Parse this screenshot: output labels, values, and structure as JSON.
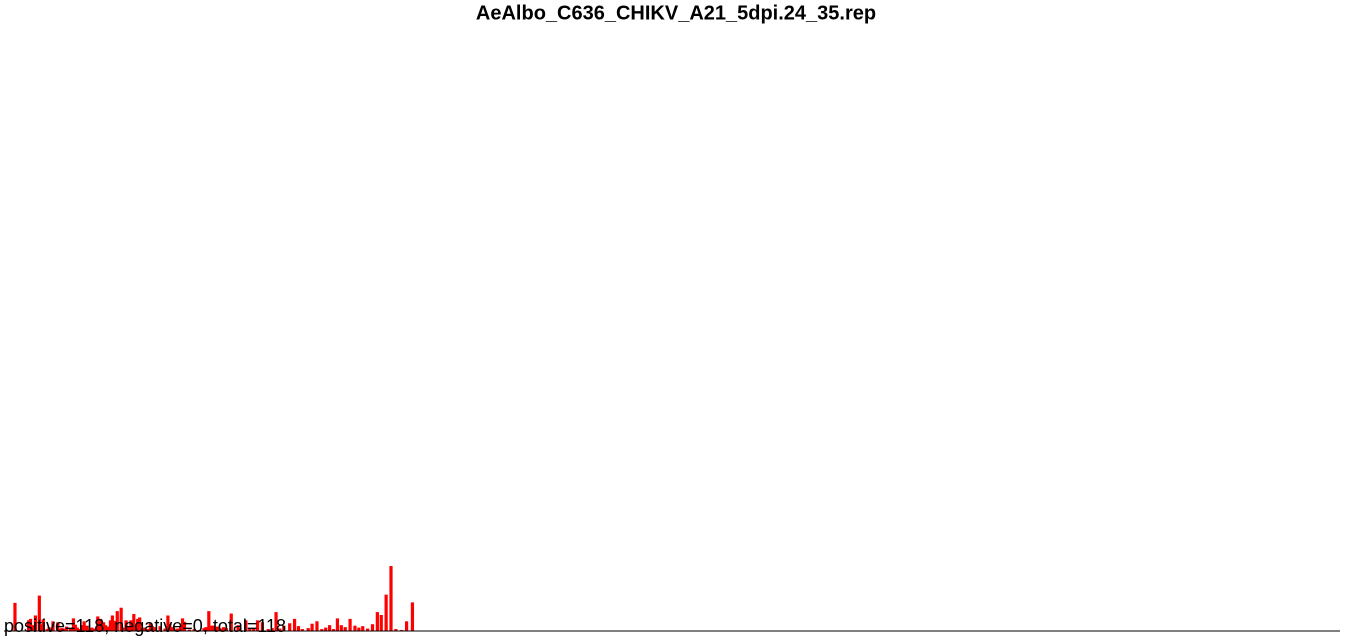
{
  "chart_data": {
    "type": "bar",
    "title": "AeAlbo_C636_CHIKV_A21_5dpi.24_35.rep",
    "summary": "positive=118, negative=0, total=118",
    "xlabel": "",
    "ylabel": "",
    "grid": false,
    "legend": "none",
    "colors": {
      "bar": "#ff0000",
      "baseline": "#000000"
    },
    "x_range": [
      0,
      1316
    ],
    "ylim": [
      0,
      100
    ],
    "x": [
      1,
      15,
      16,
      17,
      20,
      22,
      26,
      28,
      30,
      34,
      36,
      38,
      40,
      45,
      47,
      49,
      51,
      54,
      58,
      61,
      63,
      65,
      67,
      70,
      72,
      75,
      78,
      80,
      82,
      86,
      89,
      92,
      94,
      97,
      99,
      101,
      103,
      106,
      110,
      112,
      115,
      117,
      120,
      123,
      125,
      127,
      129,
      132,
      134,
      138,
      140,
      142,
      144,
      150,
      155,
      158,
      160,
      162,
      164,
      166,
      168,
      171,
      173,
      175,
      180,
      185,
      190,
      195,
      197,
      200,
      203,
      205,
      207,
      209,
      211,
      213,
      215,
      218,
      223,
      230,
      238,
      242,
      246,
      250,
      255,
      261,
      265,
      269,
      273,
      277,
      283,
      288,
      292,
      296,
      302,
      306,
      311,
      316,
      320,
      324,
      328,
      332,
      336,
      340,
      345,
      350,
      354,
      358,
      363,
      368,
      373,
      377,
      382,
      387,
      392,
      398,
      403,
      409
    ],
    "values": [
      5.8,
      2.2,
      2.2,
      2.5,
      1.2,
      3.2,
      7.3,
      1.4,
      2.4,
      0.4,
      0.8,
      0.5,
      2.0,
      1.8,
      0.4,
      0.6,
      0.5,
      0.9,
      0.4,
      2.6,
      1.3,
      0.7,
      0.4,
      1.2,
      2.0,
      1.1,
      0.3,
      0.7,
      0.5,
      3.0,
      2.5,
      1.8,
      1.2,
      0.9,
      2.2,
      3.2,
      2.1,
      4.1,
      4.8,
      0.7,
      2.2,
      0.8,
      2.2,
      3.5,
      1.1,
      2.5,
      2.8,
      0.3,
      0.7,
      0.4,
      1.6,
      1.0,
      0.8,
      1.0,
      0.5,
      3.2,
      1.5,
      0.8,
      0.6,
      0.3,
      0.5,
      1.0,
      2.6,
      1.9,
      0.3,
      0.4,
      0.2,
      0.6,
      0.8,
      4.1,
      1.1,
      1.1,
      0.7,
      0.9,
      0.3,
      0.5,
      0.8,
      0.6,
      3.6,
      1.2,
      2.2,
      0.4,
      0.5,
      2.2,
      1.8,
      0.4,
      0.6,
      3.9,
      0.5,
      1.1,
      1.6,
      2.5,
      1.0,
      0.4,
      0.6,
      1.5,
      2.0,
      0.4,
      0.7,
      1.2,
      0.4,
      2.6,
      1.2,
      0.8,
      2.5,
      1.1,
      0.7,
      1.0,
      0.5,
      1.4,
      3.9,
      3.3,
      7.5,
      13.4,
      0.4,
      0.2,
      2.0,
      5.9
    ]
  }
}
